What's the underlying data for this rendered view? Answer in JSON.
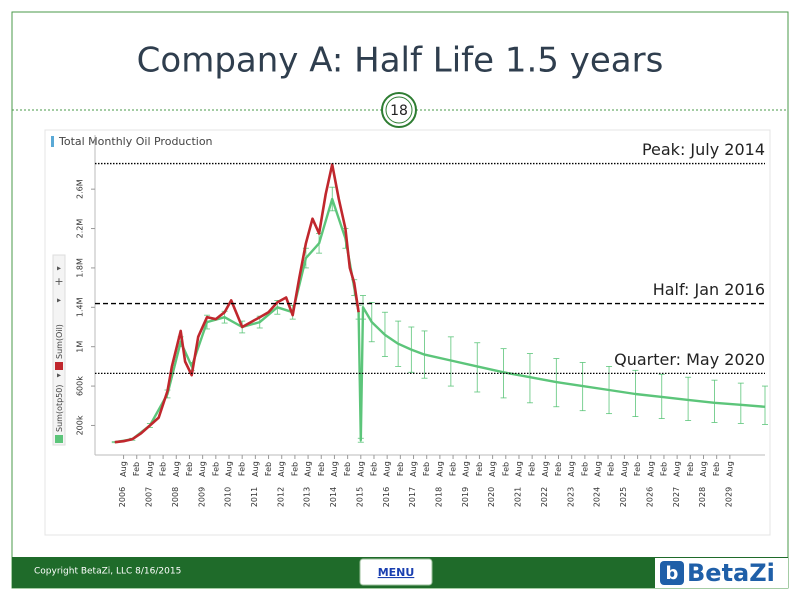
{
  "slide": {
    "title": "Company A: Half Life 1.5 years",
    "page_number": "18",
    "copyright": "Copyright BetaZi, LLC 8/16/2015",
    "menu": "MENU",
    "logo": "BetaZi"
  },
  "chart_data": {
    "type": "line",
    "title": "Total Monthly Oil Production",
    "xlim": [
      "2005-07",
      "2030-12"
    ],
    "ylim": [
      -100000,
      3150000
    ],
    "yticks": [
      {
        "value": 200000,
        "label": "200k"
      },
      {
        "value": 600000,
        "label": "600k"
      },
      {
        "value": 1000000,
        "label": "1M"
      },
      {
        "value": 1400000,
        "label": "1.4M"
      },
      {
        "value": 1800000,
        "label": "1.8M"
      },
      {
        "value": 2200000,
        "label": "2.2M"
      },
      {
        "value": 2600000,
        "label": "2.6M"
      }
    ],
    "xticks": [
      {
        "value": "2006-08",
        "label": "Aug"
      },
      {
        "value": "2007-02",
        "label": "Feb"
      },
      {
        "value": "2007-08",
        "label": "Aug"
      },
      {
        "value": "2008-02",
        "label": "Feb"
      },
      {
        "value": "2008-08",
        "label": "Aug"
      },
      {
        "value": "2009-02",
        "label": "Feb"
      },
      {
        "value": "2009-08",
        "label": "Aug"
      },
      {
        "value": "2010-02",
        "label": "Feb"
      },
      {
        "value": "2010-08",
        "label": "Aug"
      },
      {
        "value": "2011-02",
        "label": "Feb"
      },
      {
        "value": "2011-08",
        "label": "Aug"
      },
      {
        "value": "2012-02",
        "label": "Feb"
      },
      {
        "value": "2012-08",
        "label": "Aug"
      },
      {
        "value": "2013-02",
        "label": "Feb"
      },
      {
        "value": "2013-08",
        "label": "Aug"
      },
      {
        "value": "2014-02",
        "label": "Feb"
      },
      {
        "value": "2014-08",
        "label": "Aug"
      },
      {
        "value": "2015-02",
        "label": "Feb"
      },
      {
        "value": "2015-08",
        "label": "Aug"
      },
      {
        "value": "2016-02",
        "label": "Feb"
      },
      {
        "value": "2016-08",
        "label": "Aug"
      },
      {
        "value": "2017-02",
        "label": "Feb"
      },
      {
        "value": "2017-08",
        "label": "Aug"
      },
      {
        "value": "2018-02",
        "label": "Feb"
      },
      {
        "value": "2018-08",
        "label": "Aug"
      },
      {
        "value": "2019-02",
        "label": "Feb"
      },
      {
        "value": "2019-08",
        "label": "Aug"
      },
      {
        "value": "2020-02",
        "label": "Feb"
      },
      {
        "value": "2020-08",
        "label": "Aug"
      },
      {
        "value": "2021-02",
        "label": "Feb"
      },
      {
        "value": "2021-08",
        "label": "Aug"
      },
      {
        "value": "2022-02",
        "label": "Feb"
      },
      {
        "value": "2022-08",
        "label": "Aug"
      },
      {
        "value": "2023-02",
        "label": "Feb"
      },
      {
        "value": "2023-08",
        "label": "Aug"
      },
      {
        "value": "2024-02",
        "label": "Feb"
      },
      {
        "value": "2024-08",
        "label": "Aug"
      },
      {
        "value": "2025-02",
        "label": "Feb"
      },
      {
        "value": "2025-08",
        "label": "Aug"
      },
      {
        "value": "2026-02",
        "label": "Feb"
      },
      {
        "value": "2026-08",
        "label": "Aug"
      },
      {
        "value": "2027-02",
        "label": "Feb"
      },
      {
        "value": "2027-08",
        "label": "Aug"
      },
      {
        "value": "2028-02",
        "label": "Feb"
      },
      {
        "value": "2028-08",
        "label": "Aug"
      },
      {
        "value": "2029-02",
        "label": "Feb"
      },
      {
        "value": "2029-08",
        "label": "Aug"
      }
    ],
    "year_labels": [
      2006,
      2007,
      2008,
      2009,
      2010,
      2011,
      2012,
      2013,
      2014,
      2015,
      2016,
      2017,
      2018,
      2019,
      2020,
      2021,
      2022,
      2023,
      2024,
      2025,
      2026,
      2027,
      2028,
      2029
    ],
    "annotations": [
      {
        "text": "Peak: July 2014",
        "value": 2860000,
        "style": "dotted"
      },
      {
        "text": "Half: Jan 2016",
        "value": 1438000,
        "style": "dashed"
      },
      {
        "text": "Quarter: May 2020",
        "value": 729000,
        "style": "dotted"
      }
    ],
    "series": [
      {
        "name": "Sum(otp50)",
        "color": "#5cc57a",
        "x": [
          "2006-04",
          "2006-12",
          "2007-08",
          "2008-04",
          "2008-10",
          "2009-03",
          "2009-10",
          "2010-06",
          "2011-02",
          "2011-10",
          "2012-06",
          "2013-01",
          "2013-07",
          "2014-01",
          "2014-07",
          "2015-01",
          "2015-05",
          "2015-07",
          "2015-08",
          "2015-09",
          "2016-01",
          "2016-07",
          "2017-01",
          "2017-07",
          "2018-01",
          "2019-01",
          "2020-01",
          "2021-01",
          "2022-01",
          "2023-01",
          "2024-01",
          "2025-01",
          "2026-01",
          "2027-01",
          "2028-01",
          "2029-01",
          "2030-01",
          "2030-12"
        ],
        "values": [
          30000,
          60000,
          200000,
          520000,
          1050000,
          800000,
          1250000,
          1300000,
          1200000,
          1250000,
          1400000,
          1350000,
          1900000,
          2050000,
          2500000,
          2100000,
          1600000,
          1350000,
          50000,
          1400000,
          1250000,
          1120000,
          1030000,
          970000,
          920000,
          860000,
          800000,
          740000,
          690000,
          640000,
          600000,
          560000,
          520000,
          490000,
          460000,
          430000,
          410000,
          390000
        ],
        "lower": [
          25000,
          50000,
          180000,
          480000,
          1000000,
          760000,
          1180000,
          1240000,
          1140000,
          1190000,
          1330000,
          1280000,
          1800000,
          1950000,
          2380000,
          2000000,
          1520000,
          1280000,
          30000,
          1280000,
          1050000,
          900000,
          800000,
          740000,
          680000,
          600000,
          540000,
          480000,
          430000,
          390000,
          350000,
          320000,
          290000,
          270000,
          250000,
          230000,
          220000,
          210000
        ],
        "upper": [
          35000,
          70000,
          220000,
          560000,
          1100000,
          840000,
          1320000,
          1360000,
          1260000,
          1310000,
          1470000,
          1420000,
          2000000,
          2150000,
          2620000,
          2200000,
          1680000,
          1420000,
          70000,
          1520000,
          1450000,
          1350000,
          1260000,
          1200000,
          1160000,
          1100000,
          1040000,
          980000,
          930000,
          880000,
          840000,
          800000,
          760000,
          720000,
          690000,
          660000,
          630000,
          600000
        ]
      },
      {
        "name": "Sum(Oil)",
        "color": "#c0272d",
        "x": [
          "2006-04",
          "2006-08",
          "2006-12",
          "2007-04",
          "2007-08",
          "2007-12",
          "2008-04",
          "2008-06",
          "2008-10",
          "2008-12",
          "2009-03",
          "2009-06",
          "2009-10",
          "2010-02",
          "2010-06",
          "2010-09",
          "2011-02",
          "2011-06",
          "2011-10",
          "2012-02",
          "2012-06",
          "2012-10",
          "2013-01",
          "2013-04",
          "2013-07",
          "2013-10",
          "2014-01",
          "2014-04",
          "2014-07",
          "2014-10",
          "2015-01",
          "2015-03",
          "2015-05",
          "2015-07"
        ],
        "values": [
          30000,
          40000,
          60000,
          120000,
          200000,
          280000,
          550000,
          800000,
          1160000,
          850000,
          710000,
          1100000,
          1300000,
          1280000,
          1350000,
          1470000,
          1200000,
          1250000,
          1300000,
          1350000,
          1450000,
          1500000,
          1320000,
          1700000,
          2050000,
          2300000,
          2150000,
          2550000,
          2850000,
          2500000,
          2200000,
          1800000,
          1650000,
          1350000
        ]
      }
    ]
  }
}
